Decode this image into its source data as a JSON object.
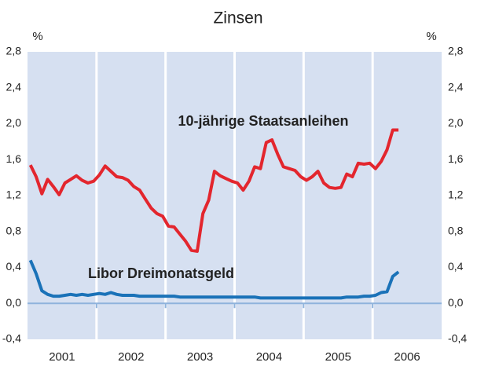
{
  "chart_data": {
    "type": "line",
    "title": "Zinsen",
    "y_unit": "%",
    "y2_unit": "%",
    "categories": [
      null,
      null,
      null,
      null,
      null,
      null,
      "2001",
      null,
      null,
      null,
      null,
      null,
      null,
      null,
      null,
      null,
      null,
      null,
      "2002",
      null,
      null,
      null,
      null,
      null,
      null,
      null,
      null,
      null,
      null,
      null,
      "2003",
      null,
      null,
      null,
      null,
      null,
      null,
      null,
      null,
      null,
      null,
      null,
      "2004",
      null,
      null,
      null,
      null,
      null,
      null,
      null,
      null,
      null,
      null,
      null,
      "2005",
      null,
      null,
      null,
      null,
      null,
      null,
      null,
      null,
      null,
      null,
      null,
      "2006",
      null,
      null,
      null,
      null,
      null
    ],
    "series": [
      {
        "name": "10-jährige Staatsanleihen",
        "color": "#e3262e",
        "values": [
          1.54,
          1.41,
          1.22,
          1.38,
          1.3,
          1.21,
          1.34,
          1.38,
          1.42,
          1.37,
          1.34,
          1.36,
          1.43,
          1.53,
          1.47,
          1.41,
          1.4,
          1.37,
          1.3,
          1.26,
          1.16,
          1.06,
          1.0,
          0.97,
          0.86,
          0.85,
          0.77,
          0.69,
          0.59,
          0.58,
          1.0,
          1.15,
          1.47,
          1.42,
          1.39,
          1.36,
          1.34,
          1.26,
          1.36,
          1.52,
          1.5,
          1.79,
          1.82,
          1.66,
          1.52,
          1.5,
          1.48,
          1.41,
          1.37,
          1.41,
          1.47,
          1.34,
          1.29,
          1.28,
          1.29,
          1.44,
          1.41,
          1.56,
          1.55,
          1.56,
          1.5,
          1.58,
          1.71,
          1.93,
          1.93,
          null,
          null,
          null,
          null,
          null,
          null,
          null
        ]
      },
      {
        "name": "Libor Dreimonatsgeld",
        "color": "#1a72b8",
        "values": [
          0.48,
          0.33,
          0.14,
          0.1,
          0.08,
          0.08,
          0.09,
          0.1,
          0.09,
          0.1,
          0.09,
          0.1,
          0.11,
          0.1,
          0.12,
          0.1,
          0.09,
          0.09,
          0.09,
          0.08,
          0.08,
          0.08,
          0.08,
          0.08,
          0.08,
          0.08,
          0.07,
          0.07,
          0.07,
          0.07,
          0.07,
          0.07,
          0.07,
          0.07,
          0.07,
          0.07,
          0.07,
          0.07,
          0.07,
          0.07,
          0.06,
          0.06,
          0.06,
          0.06,
          0.06,
          0.06,
          0.06,
          0.06,
          0.06,
          0.06,
          0.06,
          0.06,
          0.06,
          0.06,
          0.06,
          0.07,
          0.07,
          0.07,
          0.08,
          0.08,
          0.09,
          0.12,
          0.13,
          0.3,
          0.35,
          null,
          null,
          null,
          null,
          null,
          null,
          null
        ]
      }
    ],
    "ylim": [
      -0.4,
      2.8
    ],
    "yticks": [
      {
        "value": -0.4,
        "label": "-0,4"
      },
      {
        "value": 0,
        "label": "0,0"
      },
      {
        "value": 0.4,
        "label": "0,4"
      },
      {
        "value": 0.8,
        "label": "0,8"
      },
      {
        "value": 1.2,
        "label": "1,2"
      },
      {
        "value": 1.6,
        "label": "1,6"
      },
      {
        "value": 2.0,
        "label": "2,0"
      },
      {
        "value": 2.4,
        "label": "2,4"
      },
      {
        "value": 2.8,
        "label": "2,8"
      }
    ],
    "y2lim": [
      -0.4,
      2.8
    ],
    "y2ticks": [
      {
        "value": -0.4,
        "label": "-0,4"
      },
      {
        "value": 0,
        "label": "0,0"
      },
      {
        "value": 0.4,
        "label": "0,4"
      },
      {
        "value": 0.8,
        "label": "0,8"
      },
      {
        "value": 1.2,
        "label": "1,2"
      },
      {
        "value": 1.6,
        "label": "1,6"
      },
      {
        "value": 2.0,
        "label": "2,0"
      },
      {
        "value": 2.4,
        "label": "2,4"
      },
      {
        "value": 2.8,
        "label": "2,8"
      }
    ],
    "grid": false
  }
}
